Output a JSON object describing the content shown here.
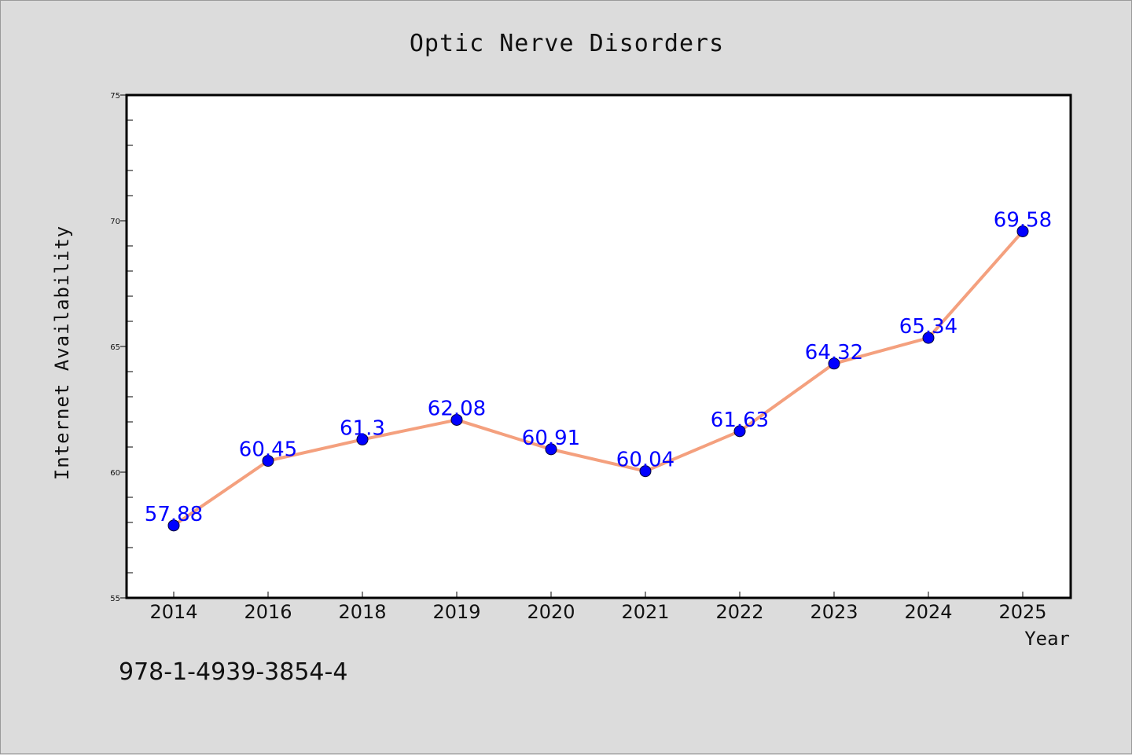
{
  "chart_data": {
    "type": "line",
    "title": "Optic Nerve Disorders",
    "xlabel": "Year",
    "ylabel": "Internet Availability",
    "categories": [
      "2014",
      "2016",
      "2018",
      "2019",
      "2020",
      "2021",
      "2022",
      "2023",
      "2024",
      "2025"
    ],
    "series": [
      {
        "values": [
          57.88,
          60.45,
          61.3,
          62.08,
          60.91,
          60.04,
          61.63,
          64.32,
          65.34,
          69.58
        ],
        "data_labels": [
          "57.88",
          "60.45",
          "61.3",
          "62.08",
          "60.91",
          "60.04",
          "61.63",
          "64.32",
          "65.34",
          "69.58"
        ],
        "line_color": "#f4a07e",
        "marker_color": "#0000ff"
      }
    ],
    "ylim": [
      55,
      75
    ],
    "yticks": [
      "55",
      "60",
      "65",
      "70",
      "75"
    ],
    "grid": false,
    "legend": "none"
  },
  "footer": {
    "text": "978-1-4939-3854-4"
  },
  "colors": {
    "background": "#dcdcdc",
    "plot_background": "#ffffff",
    "label_color": "#0000ff"
  }
}
